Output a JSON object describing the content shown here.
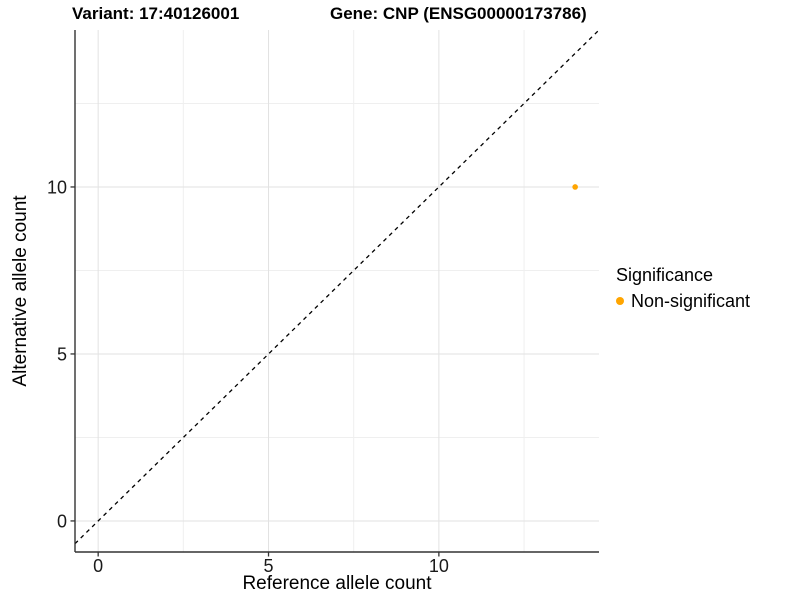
{
  "chart_data": {
    "type": "scatter",
    "title_left": "Variant: 17:40126001",
    "title_right": "Gene: CNP (ENSG00000173786)",
    "xlabel": "Reference allele count",
    "ylabel": "Alternative allele count",
    "xlim": [
      -0.68,
      14.7
    ],
    "ylim": [
      -0.93,
      14.7
    ],
    "x_major_ticks": [
      0,
      5,
      10
    ],
    "y_major_ticks": [
      0,
      5,
      10
    ],
    "x_minor_ticks": [
      2.5,
      7.5,
      12.5
    ],
    "y_minor_ticks": [
      2.5,
      7.5,
      12.5
    ],
    "grid": true,
    "points": [
      {
        "x": 14,
        "y": 10,
        "series": "Non-significant",
        "color": "#FFA500"
      }
    ],
    "reference_line": {
      "slope": 1,
      "intercept": 0,
      "style": "dashed",
      "color": "#000000"
    },
    "legend": {
      "title": "Significance",
      "position": "right",
      "items": [
        {
          "label": "Non-significant",
          "color": "#FFA500"
        }
      ]
    },
    "colors": {
      "background": "#FFFFFF",
      "grid_major": "#E2E2E2",
      "grid_minor": "#EFEFEF",
      "axis_line": "#333333",
      "tick_text": "#1A1A1A"
    }
  }
}
